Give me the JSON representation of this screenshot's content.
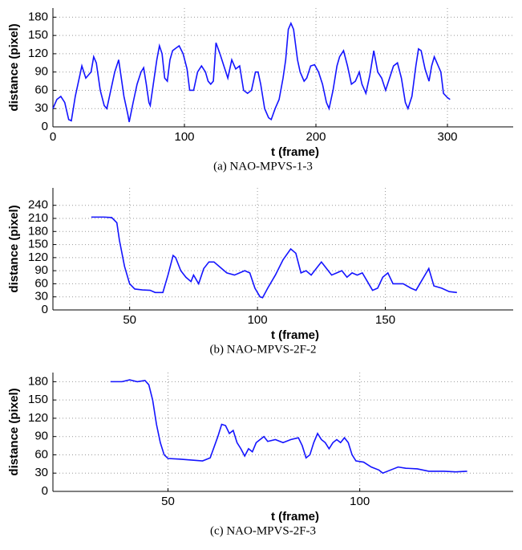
{
  "chart_data": [
    {
      "type": "line",
      "caption": "(a) NAO-MPVS-1-3",
      "xlabel": "t (frame)",
      "ylabel": "distance (pixel)",
      "grid": true,
      "xlim": [
        0,
        350
      ],
      "xticks": [
        0,
        100,
        200,
        300
      ],
      "ylim": [
        0,
        195
      ],
      "yticks": [
        0,
        30,
        60,
        90,
        120,
        150,
        180
      ],
      "series": [
        {
          "color": "#1414ff",
          "x": [
            0,
            3,
            6,
            9,
            12,
            14,
            17,
            20,
            22,
            25,
            27,
            29,
            31,
            33,
            36,
            39,
            41,
            44,
            47,
            50,
            52,
            54,
            57,
            58,
            61,
            64,
            67,
            69,
            71,
            73,
            74,
            77,
            79,
            81,
            83,
            85,
            87,
            89,
            91,
            94,
            96,
            99,
            102,
            104,
            107,
            110,
            113,
            116,
            118,
            120,
            122,
            124,
            127,
            130,
            133,
            136,
            139,
            142,
            145,
            148,
            151,
            154,
            156,
            158,
            161,
            164,
            166,
            169,
            172,
            175,
            177,
            179,
            181,
            183,
            186,
            188,
            191,
            193,
            196,
            199,
            202,
            205,
            208,
            210,
            213,
            216,
            218,
            221,
            224,
            227,
            230,
            233,
            235,
            238,
            241,
            244,
            247,
            250,
            253,
            256,
            259,
            262,
            265,
            268,
            270,
            273,
            276,
            278,
            280,
            283,
            286,
            288,
            290,
            292,
            295,
            297,
            300,
            302
          ],
          "values": [
            30,
            45,
            50,
            40,
            12,
            10,
            50,
            80,
            100,
            80,
            85,
            90,
            115,
            105,
            60,
            35,
            30,
            60,
            90,
            110,
            80,
            50,
            20,
            8,
            40,
            70,
            90,
            97,
            70,
            40,
            35,
            80,
            110,
            133,
            120,
            80,
            75,
            110,
            125,
            130,
            133,
            120,
            95,
            60,
            60,
            90,
            100,
            90,
            75,
            70,
            75,
            138,
            120,
            100,
            80,
            110,
            95,
            100,
            60,
            55,
            60,
            90,
            90,
            70,
            30,
            15,
            12,
            30,
            45,
            80,
            110,
            160,
            170,
            160,
            110,
            90,
            75,
            80,
            100,
            102,
            90,
            70,
            40,
            30,
            60,
            100,
            115,
            125,
            100,
            70,
            75,
            90,
            70,
            55,
            85,
            125,
            90,
            80,
            60,
            80,
            100,
            105,
            80,
            40,
            30,
            50,
            100,
            128,
            125,
            95,
            75,
            100,
            115,
            105,
            90,
            55,
            48,
            45
          ]
        }
      ]
    },
    {
      "type": "line",
      "caption": "(b) NAO-MPVS-2F-2",
      "xlabel": "t (frame)",
      "ylabel": "distance (pixel)",
      "grid": true,
      "xlim": [
        20,
        200
      ],
      "xticks": [
        50,
        100,
        150
      ],
      "ylim": [
        0,
        280
      ],
      "yticks": [
        0,
        30,
        60,
        90,
        120,
        150,
        180,
        210,
        240
      ],
      "series": [
        {
          "color": "#1414ff",
          "x": [
            35,
            40,
            43,
            45,
            46,
            48,
            50,
            52,
            55,
            58,
            60,
            63,
            65,
            67,
            68,
            70,
            72,
            74,
            75,
            77,
            79,
            81,
            83,
            85,
            88,
            91,
            93,
            95,
            97,
            99,
            101,
            102,
            104,
            107,
            110,
            113,
            115,
            117,
            119,
            121,
            123,
            125,
            127,
            129,
            131,
            133,
            135,
            137,
            139,
            141,
            143,
            145,
            147,
            149,
            151,
            153,
            157,
            160,
            162,
            164,
            166,
            167,
            169,
            172,
            175,
            178
          ],
          "values": [
            213,
            213,
            212,
            200,
            160,
            100,
            60,
            48,
            46,
            45,
            40,
            40,
            80,
            125,
            120,
            90,
            75,
            65,
            80,
            60,
            95,
            110,
            110,
            100,
            85,
            80,
            85,
            90,
            85,
            50,
            30,
            28,
            50,
            80,
            115,
            140,
            130,
            85,
            90,
            80,
            95,
            110,
            95,
            80,
            85,
            90,
            75,
            85,
            80,
            85,
            65,
            45,
            50,
            75,
            85,
            60,
            60,
            50,
            45,
            65,
            85,
            95,
            55,
            50,
            42,
            40
          ]
        }
      ]
    },
    {
      "type": "line",
      "caption": "(c) NAO-MPVS-2F-3",
      "xlabel": "t (frame)",
      "ylabel": "distance (pixel)",
      "grid": true,
      "xlim": [
        20,
        140
      ],
      "xticks": [
        50,
        100
      ],
      "ylim": [
        0,
        195
      ],
      "yticks": [
        0,
        30,
        60,
        90,
        120,
        150,
        180
      ],
      "series": [
        {
          "color": "#1414ff",
          "x": [
            35,
            38,
            40,
            42,
            44,
            45,
            46,
            47,
            48,
            49,
            50,
            53,
            57,
            59,
            61,
            63,
            64,
            65,
            66,
            67,
            68,
            69,
            70,
            71,
            72,
            73,
            74,
            75,
            76,
            78,
            80,
            82,
            84,
            85,
            86,
            87,
            88,
            89,
            90,
            91,
            92,
            93,
            94,
            95,
            96,
            97,
            98,
            99,
            101,
            103,
            105,
            106,
            108,
            110,
            112,
            115,
            118,
            122,
            125,
            128
          ],
          "values": [
            180,
            180,
            183,
            180,
            182,
            175,
            150,
            110,
            80,
            60,
            54,
            53,
            51,
            50,
            55,
            90,
            110,
            108,
            95,
            100,
            80,
            70,
            58,
            70,
            65,
            80,
            85,
            90,
            82,
            85,
            80,
            85,
            88,
            75,
            55,
            60,
            80,
            95,
            85,
            80,
            70,
            80,
            85,
            80,
            88,
            80,
            60,
            50,
            48,
            40,
            35,
            30,
            35,
            40,
            38,
            37,
            33,
            33,
            32,
            33
          ]
        }
      ]
    }
  ]
}
